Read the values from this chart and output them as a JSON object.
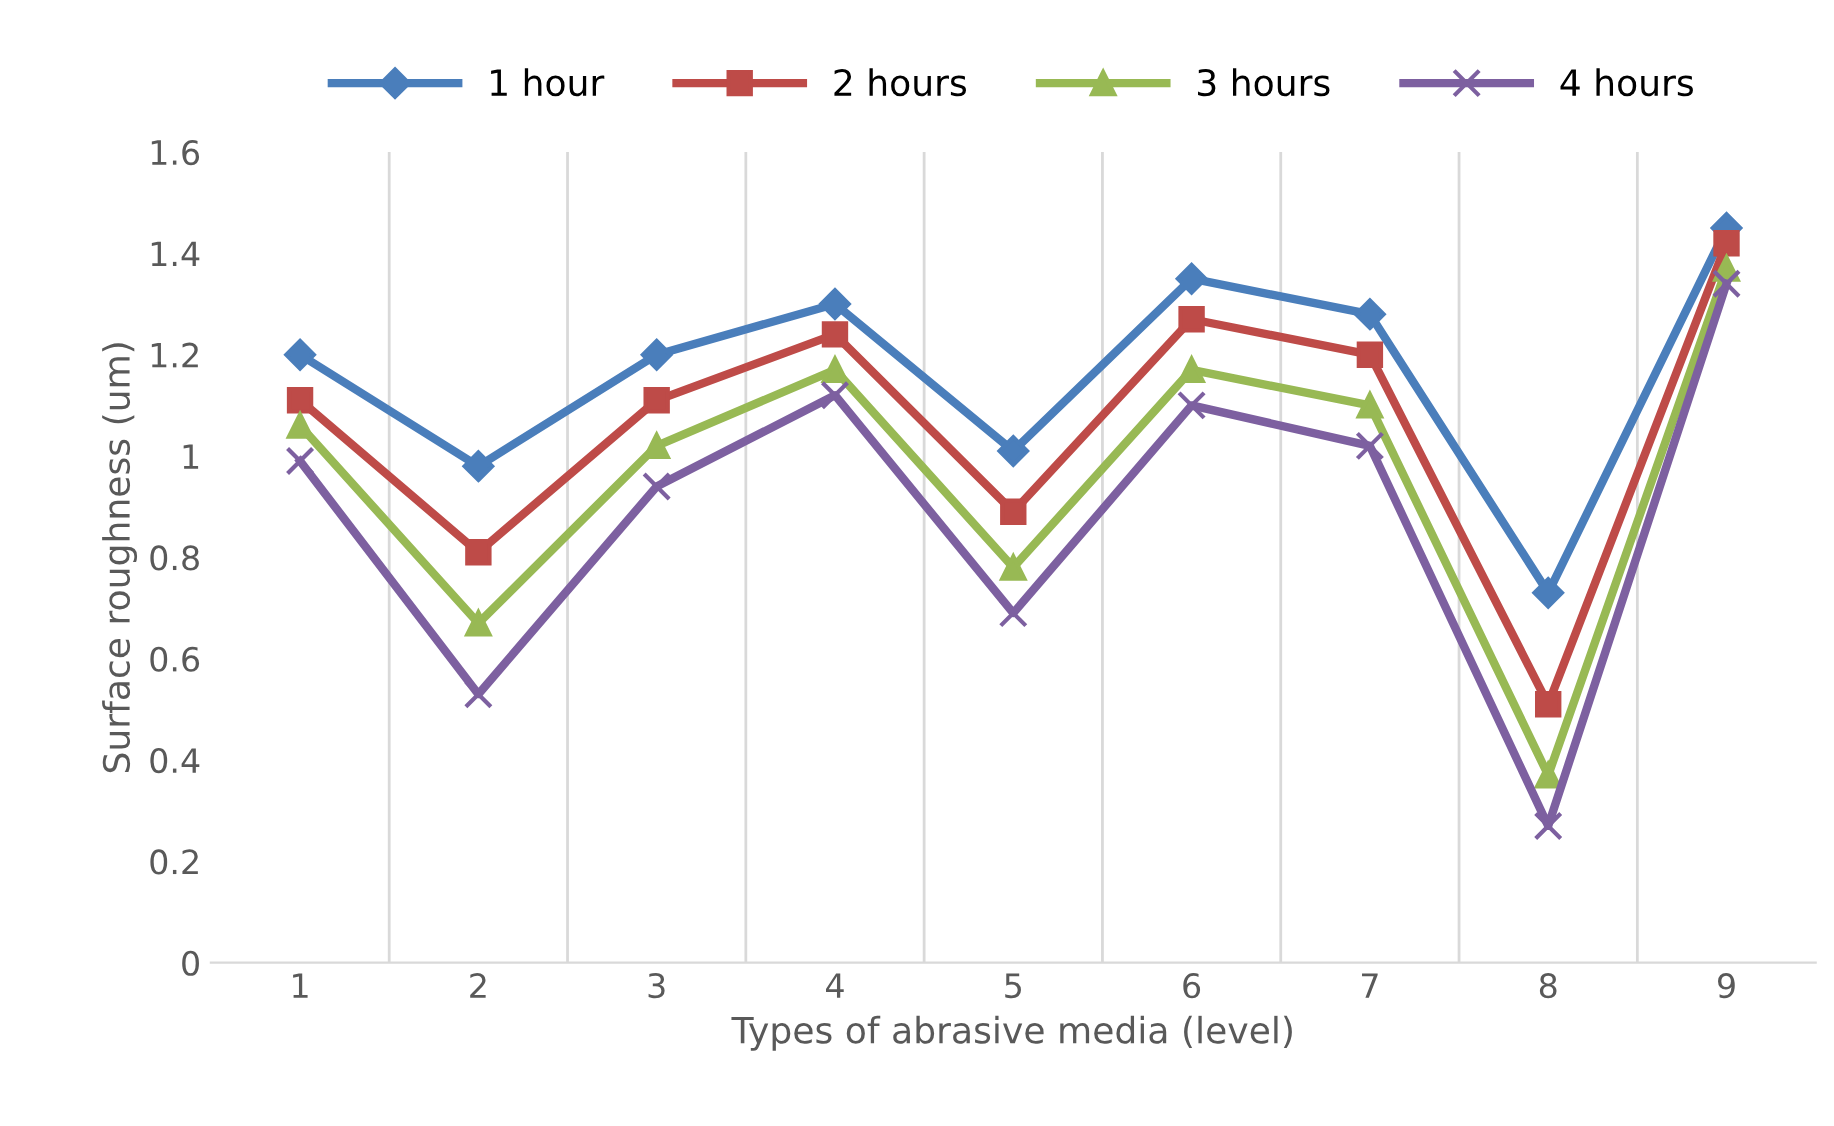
{
  "chart_data": {
    "type": "line",
    "xlabel": "Types of abrasive media (level)",
    "ylabel": "Surface roughness (um)",
    "categories": [
      "1",
      "2",
      "3",
      "4",
      "5",
      "6",
      "7",
      "8",
      "9"
    ],
    "series": [
      {
        "name": "1 hour",
        "color": "#4a7ebb",
        "marker": "diamond",
        "values": [
          1.2,
          0.98,
          1.2,
          1.3,
          1.01,
          1.35,
          1.28,
          0.73,
          1.45
        ]
      },
      {
        "name": "2 hours",
        "color": "#be4b48",
        "marker": "square",
        "values": [
          1.11,
          0.81,
          1.11,
          1.24,
          0.89,
          1.27,
          1.2,
          0.51,
          1.42
        ]
      },
      {
        "name": "3 hours",
        "color": "#98b954",
        "marker": "triangle",
        "values": [
          1.06,
          0.67,
          1.02,
          1.17,
          0.78,
          1.17,
          1.1,
          0.37,
          1.37
        ]
      },
      {
        "name": "4 hours",
        "color": "#7d60a0",
        "marker": "cross",
        "values": [
          0.99,
          0.53,
          0.94,
          1.12,
          0.69,
          1.1,
          1.02,
          0.27,
          1.34
        ]
      }
    ],
    "ylim": [
      0,
      1.6
    ],
    "yticks": [
      0,
      0.2,
      0.4,
      0.6,
      0.8,
      1,
      1.2,
      1.4,
      1.6
    ],
    "grid": "x",
    "legend": "top",
    "line_style": "solid"
  }
}
